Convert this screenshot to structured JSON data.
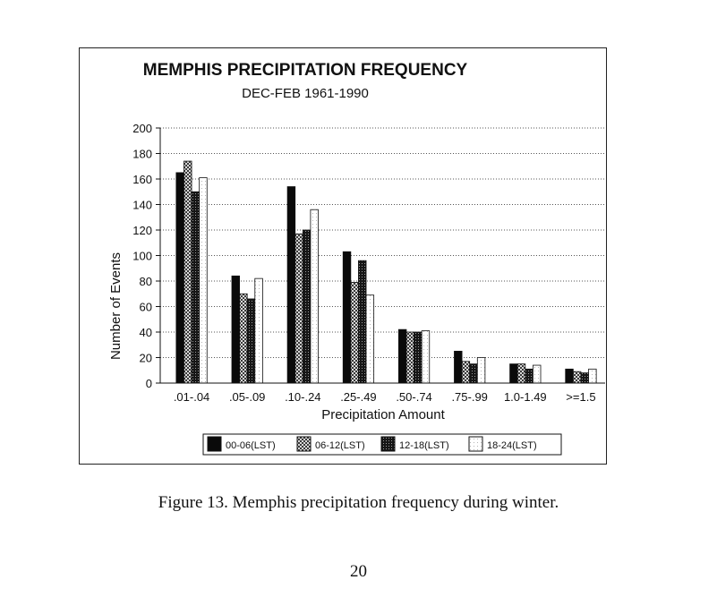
{
  "chart_data": {
    "type": "bar",
    "title": "MEMPHIS PRECIPITATION FREQUENCY",
    "subtitle": "DEC-FEB 1961-1990",
    "xlabel": "Precipitation Amount",
    "ylabel": "Number of Events",
    "ylim": [
      0,
      200
    ],
    "yticks": [
      0,
      20,
      40,
      60,
      80,
      100,
      120,
      140,
      160,
      180,
      200
    ],
    "grid": "horizontal dotted",
    "legend_position": "bottom",
    "categories": [
      ".01-.04",
      ".05-.09",
      ".10-.24",
      ".25-.49",
      ".50-.74",
      ".75-.99",
      "1.0-1.49",
      ">=1.5"
    ],
    "series": [
      {
        "name": "00-06(LST)",
        "color": "#0a0a0a",
        "values": [
          165,
          84,
          154,
          103,
          42,
          25,
          15,
          11
        ]
      },
      {
        "name": "06-12(LST)",
        "color": "#8a8a8a",
        "values": [
          174,
          70,
          117,
          79,
          40,
          17,
          15,
          9
        ]
      },
      {
        "name": "12-18(LST)",
        "color": "#2e2e2e",
        "values": [
          150,
          66,
          120,
          96,
          40,
          15,
          11,
          8
        ]
      },
      {
        "name": "18-24(LST)",
        "color": "#f2f2f2",
        "values": [
          161,
          82,
          136,
          69,
          41,
          20,
          14,
          11
        ]
      }
    ]
  },
  "caption": "Figure 13.  Memphis precipitation frequency during winter.",
  "page_number": "20"
}
